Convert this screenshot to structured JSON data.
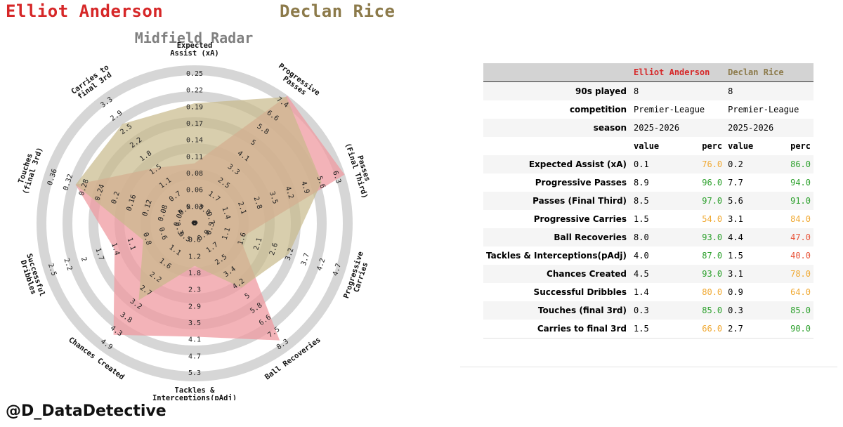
{
  "players": [
    {
      "name": "Elliot Anderson",
      "color": "#d62728"
    },
    {
      "name": "Declan Rice",
      "color": "#8c7a4a"
    }
  ],
  "credit": "@D_DataDetective",
  "chart_data": {
    "type": "radar",
    "title": "Midfield Radar",
    "axes": [
      {
        "label": [
          "Expected",
          "Assist (xA)"
        ],
        "ticks": [
          "0",
          "0.03",
          "0.06",
          "0.08",
          "0.11",
          "0.14",
          "0.17",
          "0.19",
          "0.22",
          "0.25"
        ]
      },
      {
        "label": [
          "Progressive",
          "Passes"
        ],
        "ticks": [
          "0",
          "0.8",
          "1.7",
          "2.5",
          "3.3",
          "4.1",
          "5",
          "5.8",
          "6.6",
          "7.4"
        ]
      },
      {
        "label": [
          "Passes",
          "(Final Third)"
        ],
        "ticks": [
          "0",
          "0.7",
          "1.4",
          "2.1",
          "2.8",
          "3.5",
          "4.2",
          "4.9",
          "5.6",
          "6.3"
        ]
      },
      {
        "label": [
          "Progressive",
          "Carries"
        ],
        "ticks": [
          "0",
          "0.5",
          "1.1",
          "1.6",
          "2.1",
          "2.6",
          "3.2",
          "3.7",
          "4.2",
          "4.7"
        ]
      },
      {
        "label": [
          "Ball Recoveries"
        ],
        "ticks": [
          "0",
          "0.9",
          "1.7",
          "2.5",
          "3.4",
          "4.2",
          "5",
          "5.8",
          "6.6",
          "7.5",
          "8.3"
        ]
      },
      {
        "label": [
          "Tackles &",
          "Interceptions(pAdj)"
        ],
        "ticks": [
          "0",
          "0.6",
          "1.2",
          "1.8",
          "2.3",
          "2.9",
          "3.5",
          "4.1",
          "4.7",
          "5.3"
        ]
      },
      {
        "label": [
          "Chances Created"
        ],
        "ticks": [
          "0",
          "0.5",
          "1.1",
          "1.6",
          "2.2",
          "2.7",
          "3.2",
          "3.8",
          "4.3",
          "4.9"
        ]
      },
      {
        "label": [
          "Successful",
          "Dribbles"
        ],
        "ticks": [
          "0",
          "0.3",
          "0.6",
          "0.8",
          "1.1",
          "1.4",
          "1.7",
          "2",
          "2.2",
          "2.5"
        ]
      },
      {
        "label": [
          "Touches",
          "(final 3rd)"
        ],
        "ticks": [
          "0",
          "0.04",
          "0.08",
          "0.12",
          "0.16",
          "0.2",
          "0.24",
          "0.28",
          "0.32",
          "0.36"
        ]
      },
      {
        "label": [
          "Carries to",
          "final 3rd"
        ],
        "ticks": [
          "0",
          "0.4",
          "0.7",
          "1.1",
          "1.5",
          "1.8",
          "2.2",
          "2.5",
          "2.9",
          "3.3"
        ]
      }
    ],
    "series": [
      {
        "name": "Elliot Anderson",
        "color": "#ef9aa0",
        "values": [
          0.1,
          8.9,
          8.5,
          1.5,
          8.0,
          4.0,
          4.5,
          1.4,
          0.3,
          1.5
        ]
      },
      {
        "name": "Declan Rice",
        "color": "#c8b98a",
        "values": [
          0.2,
          7.7,
          5.6,
          3.1,
          4.4,
          1.5,
          3.1,
          0.9,
          0.3,
          2.7
        ]
      }
    ],
    "draw_max": [
      0.25,
      7.4,
      6.3,
      4.7,
      8.3,
      5.3,
      4.9,
      2.5,
      0.36,
      3.3
    ]
  },
  "table": {
    "header": {
      "a": "Elliot Anderson",
      "b": "Declan Rice"
    },
    "info_rows": [
      {
        "label": "90s played",
        "a": "8",
        "b": "8"
      },
      {
        "label": "competition",
        "a": "Premier-League",
        "b": "Premier-League"
      },
      {
        "label": "season",
        "a": "2025-2026",
        "b": "2025-2026"
      }
    ],
    "subheader": {
      "value": "value",
      "perc": "perc"
    },
    "stat_rows": [
      {
        "label": "Expected Assist (xA)",
        "a_val": "0.1",
        "a_perc": "76.0",
        "b_val": "0.2",
        "b_perc": "86.0"
      },
      {
        "label": "Progressive Passes",
        "a_val": "8.9",
        "a_perc": "96.0",
        "b_val": "7.7",
        "b_perc": "94.0"
      },
      {
        "label": "Passes (Final Third)",
        "a_val": "8.5",
        "a_perc": "97.0",
        "b_val": "5.6",
        "b_perc": "91.0"
      },
      {
        "label": "Progressive Carries",
        "a_val": "1.5",
        "a_perc": "54.0",
        "b_val": "3.1",
        "b_perc": "84.0"
      },
      {
        "label": "Ball Recoveries",
        "a_val": "8.0",
        "a_perc": "93.0",
        "b_val": "4.4",
        "b_perc": "47.0"
      },
      {
        "label": "Tackles & Interceptions(pAdj)",
        "a_val": "4.0",
        "a_perc": "87.0",
        "b_val": "1.5",
        "b_perc": "40.0"
      },
      {
        "label": "Chances Created",
        "a_val": "4.5",
        "a_perc": "93.0",
        "b_val": "3.1",
        "b_perc": "78.0"
      },
      {
        "label": "Successful Dribbles",
        "a_val": "1.4",
        "a_perc": "80.0",
        "b_val": "0.9",
        "b_perc": "64.0"
      },
      {
        "label": "Touches (final 3rd)",
        "a_val": "0.3",
        "a_perc": "85.0",
        "b_val": "0.3",
        "b_perc": "85.0"
      },
      {
        "label": "Carries to final 3rd",
        "a_val": "1.5",
        "a_perc": "66.0",
        "b_val": "2.7",
        "b_perc": "90.0"
      }
    ],
    "perc_colors": {
      "high": "#2ca02c",
      "mid": "#f0a830",
      "low": "#e8553a"
    }
  }
}
